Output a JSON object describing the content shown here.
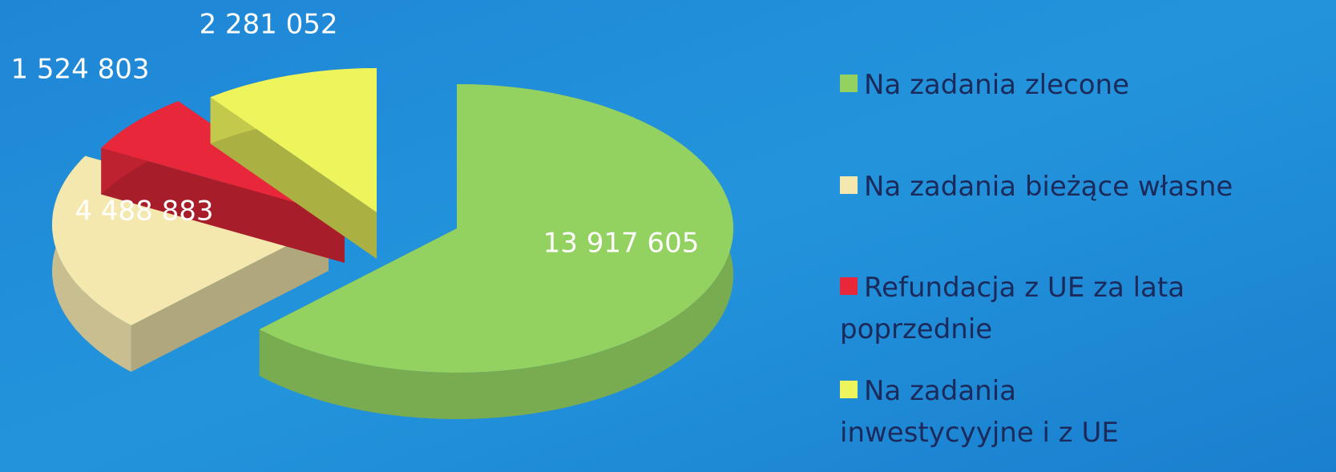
{
  "chart_data": {
    "type": "pie",
    "categories": [
      "Na zadania zlecone",
      "Na zadania bieżące własne",
      "Refundacja z UE za lata poprzednie",
      "Na zadania inwestycyyjne i z UE"
    ],
    "values": [
      13917605,
      4488883,
      1524803,
      2281052
    ],
    "value_labels": [
      "13 917 605",
      "4 488 883",
      "1 524 803",
      "2 281 052"
    ],
    "colors": [
      "#93d161",
      "#f4e8ae",
      "#e8283a",
      "#eef55c"
    ],
    "legend": "right"
  }
}
